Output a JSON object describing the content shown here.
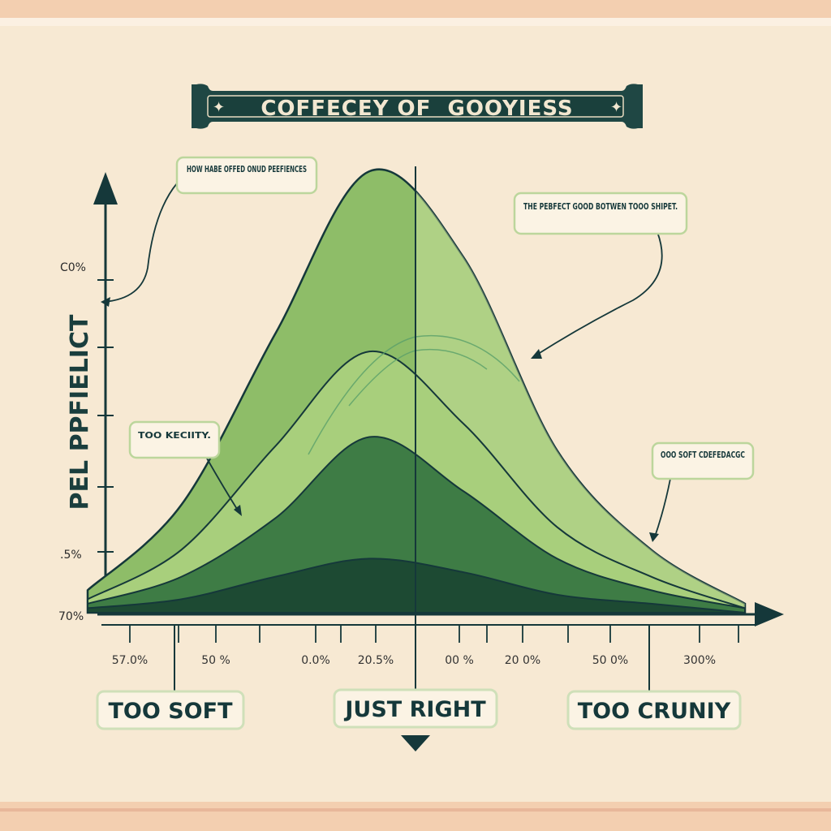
{
  "chart_data": {
    "type": "area",
    "title": "COFFECEY OF  GOOYIESS",
    "ylabel": "PEL PPFIELICT",
    "y_ticks": [
      "C0%",
      ".5%",
      "70%"
    ],
    "x_ticks": [
      "57.0%",
      "50 %",
      "0.0%",
      "20.5%",
      "00 %",
      "20 0%",
      "50 0%",
      "300%"
    ],
    "x": [
      0,
      1,
      2,
      3,
      4,
      5,
      6,
      7
    ],
    "ylim": [
      0,
      1
    ],
    "series": [
      {
        "values": [
          0.05,
          0.24,
          0.62,
          0.98,
          0.79,
          0.36,
          0.14,
          0.02
        ],
        "color": "#8ebd68"
      },
      {
        "values": [
          0.03,
          0.14,
          0.37,
          0.58,
          0.42,
          0.19,
          0.08,
          0.01
        ],
        "color": "#a8cf7c"
      },
      {
        "values": [
          0.02,
          0.08,
          0.21,
          0.39,
          0.27,
          0.12,
          0.05,
          0.01
        ],
        "color": "#3e7c45"
      },
      {
        "values": [
          0.01,
          0.03,
          0.08,
          0.12,
          0.09,
          0.04,
          0.02,
          0.0
        ],
        "color": "#1d4a33"
      }
    ],
    "annotations": [
      {
        "text": "HOW HABE OFFED ONUD PEEFIENCES"
      },
      {
        "text": "THE PEBFECT GOOD BOTWEN TOOO SHIPET."
      },
      {
        "text": "TOO KECIITY."
      },
      {
        "text": "OOO SOFT CDEFEDACGC"
      }
    ],
    "category_labels": [
      "TOO SOFT",
      "JUST RIGHT",
      "TOO CRUNIY"
    ],
    "grid": false,
    "legend": "none"
  },
  "colors": {
    "paper": "#f7e9d3",
    "frame": "#f3cfb0",
    "ink": "#15383a",
    "accent_green": "#8ebd68"
  }
}
